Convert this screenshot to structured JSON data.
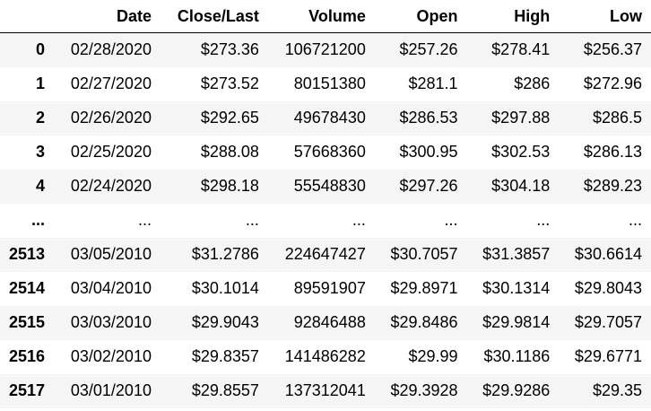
{
  "table": {
    "columns": [
      "",
      "Date",
      "Close/Last",
      "Volume",
      "Open",
      "High",
      "Low"
    ],
    "rows": [
      {
        "index": "0",
        "cells": [
          "02/28/2020",
          "$273.36",
          "106721200",
          "$257.26",
          "$278.41",
          "$256.37"
        ]
      },
      {
        "index": "1",
        "cells": [
          "02/27/2020",
          "$273.52",
          "80151380",
          "$281.1",
          "$286",
          "$272.96"
        ]
      },
      {
        "index": "2",
        "cells": [
          "02/26/2020",
          "$292.65",
          "49678430",
          "$286.53",
          "$297.88",
          "$286.5"
        ]
      },
      {
        "index": "3",
        "cells": [
          "02/25/2020",
          "$288.08",
          "57668360",
          "$300.95",
          "$302.53",
          "$286.13"
        ]
      },
      {
        "index": "4",
        "cells": [
          "02/24/2020",
          "$298.18",
          "55548830",
          "$297.26",
          "$304.18",
          "$289.23"
        ]
      },
      {
        "index": "...",
        "cells": [
          "...",
          "...",
          "...",
          "...",
          "...",
          "..."
        ]
      },
      {
        "index": "2513",
        "cells": [
          "03/05/2010",
          "$31.2786",
          "224647427",
          "$30.7057",
          "$31.3857",
          "$30.6614"
        ]
      },
      {
        "index": "2514",
        "cells": [
          "03/04/2010",
          "$30.1014",
          "89591907",
          "$29.8971",
          "$30.1314",
          "$29.8043"
        ]
      },
      {
        "index": "2515",
        "cells": [
          "03/03/2010",
          "$29.9043",
          "92846488",
          "$29.8486",
          "$29.9814",
          "$29.7057"
        ]
      },
      {
        "index": "2516",
        "cells": [
          "03/02/2010",
          "$29.8357",
          "141486282",
          "$29.99",
          "$30.1186",
          "$29.6771"
        ]
      },
      {
        "index": "2517",
        "cells": [
          "03/01/2010",
          "$29.8557",
          "137312041",
          "$29.3928",
          "$29.9286",
          "$29.35"
        ]
      }
    ]
  },
  "colors": {
    "stripe": "#f5f5f5",
    "header_rule": "#000000",
    "text": "#000000"
  }
}
